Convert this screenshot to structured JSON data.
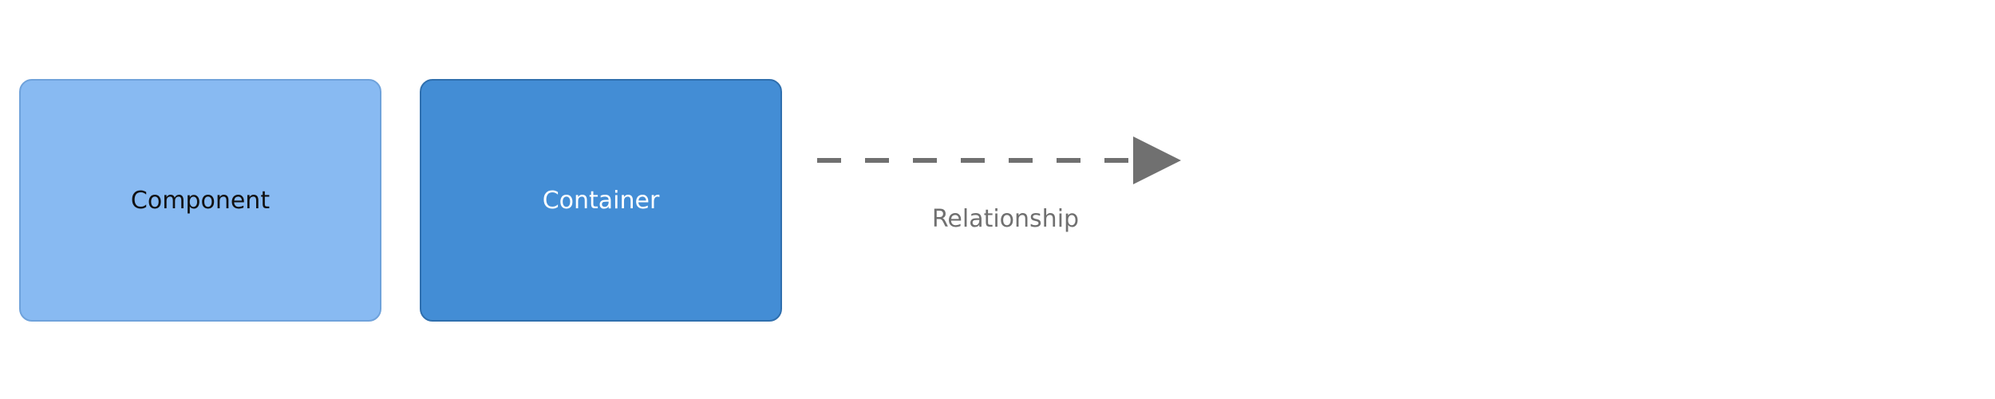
{
  "legend": {
    "elements": [
      {
        "label": "Component",
        "fill": "#88baf2",
        "border": "#6fa2db",
        "text_color": "#111111"
      },
      {
        "label": "Container",
        "fill": "#438dd5",
        "border": "#2f6fae",
        "text_color": "#ffffff"
      }
    ],
    "relationship": {
      "label": "Relationship",
      "line_color": "#707070",
      "line_style": "dashed",
      "arrowhead": "triangle"
    }
  }
}
